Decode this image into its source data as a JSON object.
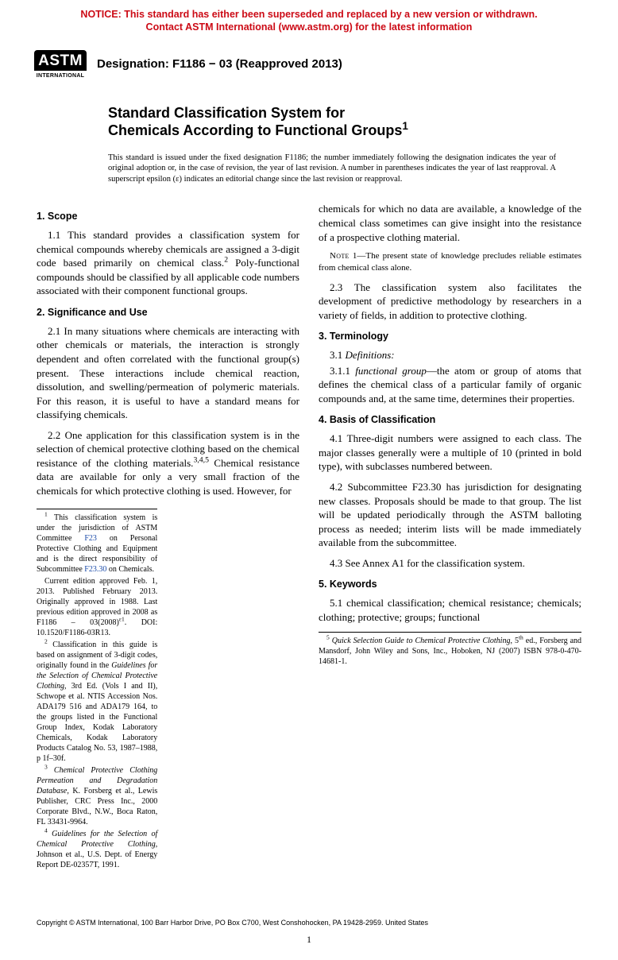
{
  "notice": {
    "line1": "NOTICE: This standard has either been superseded and replaced by a new version or withdrawn.",
    "line2": "Contact ASTM International (www.astm.org) for the latest information",
    "color": "#cc0b16"
  },
  "logo": {
    "top": "ASTM",
    "bottom": "INTERNATIONAL"
  },
  "designation": "Designation: F1186 − 03 (Reapproved 2013)",
  "title": {
    "line1": "Standard Classification System for",
    "line2": "Chemicals According to Functional Groups",
    "sup": "1"
  },
  "issuance": "This standard is issued under the fixed designation F1186; the number immediately following the designation indicates the year of original adoption or, in the case of revision, the year of last revision. A number in parentheses indicates the year of last reapproval. A superscript epsilon (ε) indicates an editorial change since the last revision or reapproval.",
  "sections": {
    "s1": {
      "head": "1. Scope",
      "p1a": "1.1 This standard provides a classification system for chemical compounds whereby chemicals are assigned a 3-digit code based primarily on chemical class.",
      "p1b": " Poly-functional compounds should be classified by all applicable code numbers associated with their component functional groups.",
      "sup": "2"
    },
    "s2": {
      "head": "2. Significance and Use",
      "p1": "2.1 In many situations where chemicals are interacting with other chemicals or materials, the interaction is strongly dependent and often correlated with the functional group(s) present. These interactions include chemical reaction, dissolution, and swelling/permeation of polymeric materials. For this reason, it is useful to have a standard means for classifying chemicals.",
      "p2a": "2.2 One application for this classification system is in the selection of chemical protective clothing based on the chemical resistance of the clothing materials.",
      "p2b": " Chemical resistance data are available for only a very small fraction of the chemicals for which protective clothing is used. However, for",
      "sup": "3,4,5",
      "p2c": "chemicals for which no data are available, a knowledge of the chemical class sometimes can give insight into the resistance of a prospective clothing material.",
      "note1_lbl": "Note",
      "note1": " 1—The present state of knowledge precludes reliable estimates from chemical class alone.",
      "p3": "2.3 The classification system also facilitates the development of predictive methodology by researchers in a variety of fields, in addition to protective clothing."
    },
    "s3": {
      "head": "3. Terminology",
      "defs": "3.1 Definitions:",
      "p1a": "3.1.1 ",
      "term": "functional group",
      "p1b": "—the atom or group of atoms that defines the chemical class of a particular family of organic compounds and, at the same time, determines their properties."
    },
    "s4": {
      "head": "4. Basis of Classification",
      "p1": "4.1 Three-digit numbers were assigned to each class. The major classes generally were a multiple of 10 (printed in bold type), with subclasses numbered between.",
      "p2": "4.2 Subcommittee F23.30 has jurisdiction for designating new classes. Proposals should be made to that group. The list will be updated periodically through the ASTM balloting process as needed; interim lists will be made immediately available from the subcommittee.",
      "p3": "4.3 See Annex A1 for the classification system."
    },
    "s5": {
      "head": "5. Keywords",
      "p1": "5.1 chemical classification; chemical resistance; chemicals; clothing; protective; groups; functional"
    }
  },
  "footnotes": {
    "f1a": " This classification system is under the jurisdiction of ASTM Committee ",
    "f1link1": "F23",
    "f1b": " on Personal Protective Clothing and Equipment and is the direct responsibility of Subcommittee ",
    "f1link2": "F23.30",
    "f1c": " on Chemicals.",
    "f1d": "Current edition approved Feb. 1, 2013. Published February 2013. Originally approved in 1988. Last previous edition approved in 2008 as F1186 – 03(2008)",
    "f1e": ". DOI: 10.1520/F1186-03R13.",
    "f1dsup": "ε1",
    "f2a": " Classification in this guide is based on assignment of 3-digit codes, originally found in the ",
    "f2i": "Guidelines for the Selection of Chemical Protective Clothing",
    "f2b": ", 3rd Ed. (Vols I and II), Schwope et al. NTIS Accession Nos. ADA179 516 and ADA179 164, to the groups listed in the Functional Group Index, Kodak Laboratory Chemicals, Kodak Laboratory Products Catalog No. 53, 1987–1988, p 1f–30f.",
    "f3i": "Chemical Protective Clothing Permeation and Degradation Database",
    "f3b": ", K. Forsberg et al., Lewis Publisher, CRC Press Inc., 2000 Corporate Blvd., N.W., Boca Raton, FL 33431-9964.",
    "f4i": "Guidelines for the Selection of Chemical Protective Clothing",
    "f4b": ", Johnson et al., U.S. Dept. of Energy Report DE-02357T, 1991.",
    "f5i": "Quick Selection Guide to Chemical Protective Clothing",
    "f5b": ", 5",
    "f5sup": "th",
    "f5c": " ed., Forsberg and Mansdorf, John Wiley and Sons, Inc., Hoboken, NJ (2007) ISBN 978-0-470-14681-1."
  },
  "copyright": "Copyright © ASTM International, 100 Barr Harbor Drive, PO Box C700, West Conshohocken, PA 19428-2959. United States",
  "pagenum": "1"
}
